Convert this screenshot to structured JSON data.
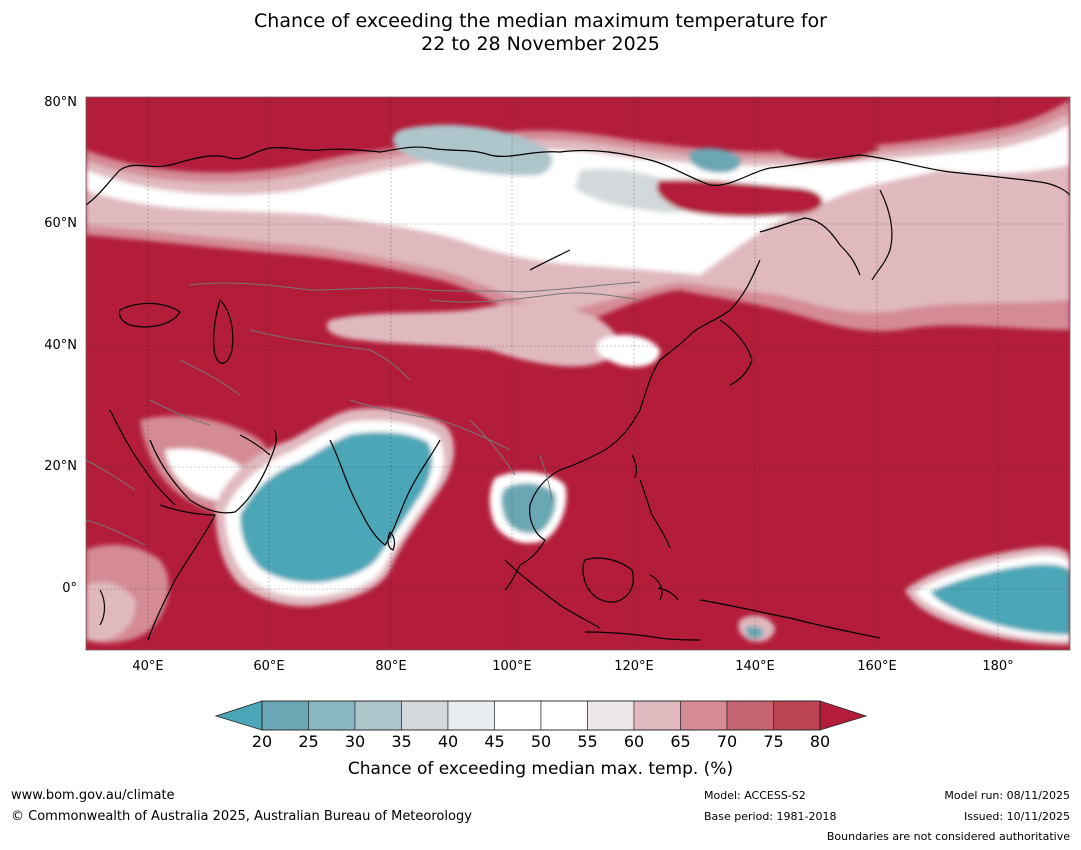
{
  "title": {
    "line1": "Chance of exceeding the median maximum temperature for",
    "line2": "22 to 28 November 2025"
  },
  "map": {
    "latitude_labels": [
      "80°N",
      "60°N",
      "40°N",
      "20°N",
      "0°"
    ],
    "longitude_labels": [
      "40°E",
      "60°E",
      "80°E",
      "100°E",
      "120°E",
      "140°E",
      "160°E",
      "180°"
    ],
    "dominant_color": "#b31d3a",
    "below_median_color": "#4ba6b7"
  },
  "colorbar": {
    "ticks": [
      "20",
      "25",
      "30",
      "35",
      "40",
      "45",
      "50",
      "55",
      "60",
      "65",
      "70",
      "75",
      "80"
    ],
    "colors": [
      "#6ba7b4",
      "#88b6c1",
      "#adc5cb",
      "#d3d9db",
      "#e8eef0",
      "#ffffff",
      "#ffffff",
      "#ece8ea",
      "#e0b9bf",
      "#d48b95",
      "#c66370",
      "#bd4453"
    ],
    "low_extend_color": "#4ba6b7",
    "high_extend_color": "#b31d3a",
    "label": "Chance of exceeding median max. temp. (%)"
  },
  "footer": {
    "url": "www.bom.gov.au/climate",
    "copyright": "© Commonwealth of Australia 2025, Australian Bureau of Meteorology",
    "model": "Model: ACCESS-S2",
    "base_period": "Base period: 1981-2018",
    "model_run": "Model run: 08/11/2025",
    "issued": "Issued: 10/11/2025",
    "disclaimer": "Boundaries are not considered authoritative"
  }
}
